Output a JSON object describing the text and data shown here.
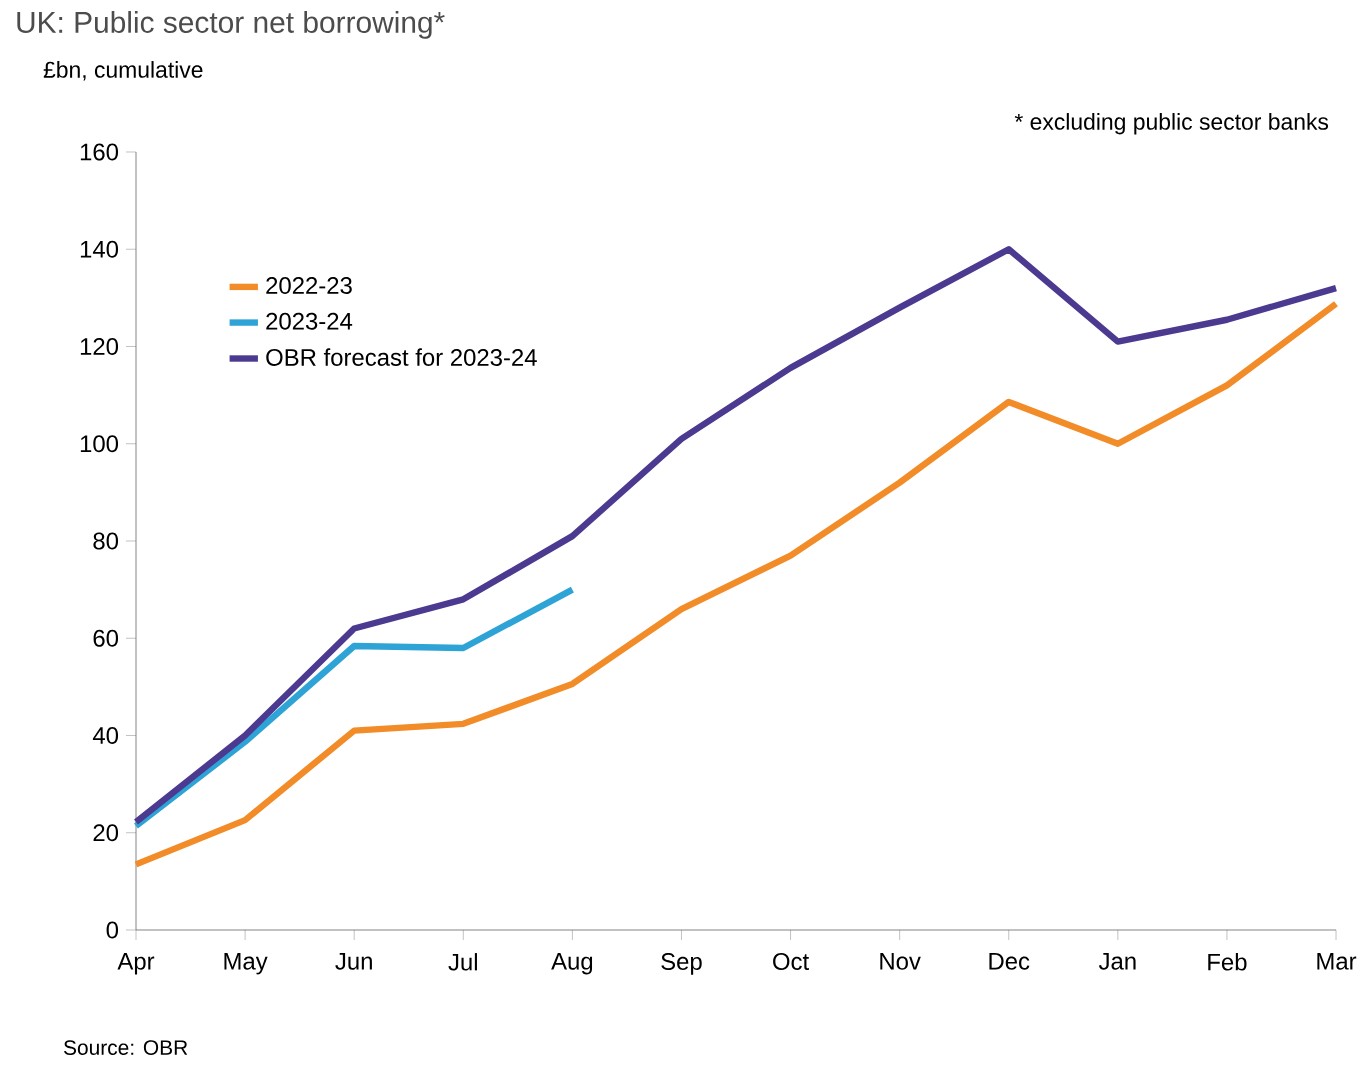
{
  "chart_data": {
    "type": "line",
    "title": "UK: Public sector net borrowing*",
    "subtitle": "£bn, cumulative",
    "annotations": [
      "* excluding public sector banks",
      "Source: OBR"
    ],
    "categories": [
      "Apr",
      "May",
      "Jun",
      "Jul",
      "Aug",
      "Sep",
      "Oct",
      "Nov",
      "Dec",
      "Jan",
      "Feb",
      "Mar"
    ],
    "series": [
      {
        "name": "2022-23",
        "color": "#f28c28",
        "values": [
          13.5,
          22.6,
          41,
          42.4,
          50.6,
          66,
          77,
          92,
          108.6,
          100,
          112,
          128.8
        ]
      },
      {
        "name": "2023-24",
        "color": "#2ea3d5",
        "values": [
          21.4,
          38.7,
          58.4,
          58,
          70,
          null,
          null,
          null,
          null,
          null,
          null,
          null
        ]
      },
      {
        "name": "OBR forecast for 2023-24",
        "color": "#4b3a8f",
        "values": [
          22.2,
          40,
          62,
          68,
          81,
          101,
          115.6,
          128,
          140,
          121,
          125.5,
          132
        ]
      }
    ],
    "ylim": [
      0,
      160
    ],
    "yticks": [
      0,
      20,
      40,
      60,
      80,
      100,
      120,
      140,
      160
    ],
    "grid": false,
    "legend": "top left",
    "marker": "none",
    "line_style": "solid"
  }
}
